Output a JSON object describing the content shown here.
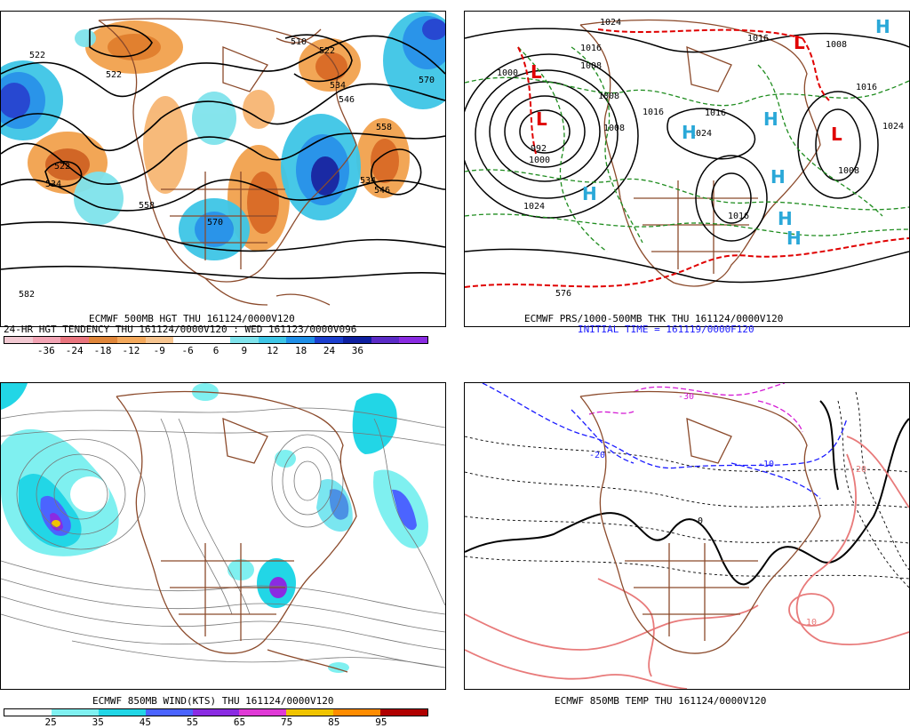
{
  "panels": {
    "p1": {
      "line1": "ECMWF 500MB HGT THU 161124/0000V120",
      "line2": "24-HR HGT TENDENCY THU 161124/0000V120 : WED 161123/0000V096",
      "contour_labels": [
        "522",
        "522",
        "510",
        "522",
        "534",
        "546",
        "570",
        "558",
        "534",
        "546",
        "522",
        "534",
        "558",
        "570",
        "582"
      ],
      "colorbar": {
        "colors": [
          "#f2c9d2",
          "#f2a4b4",
          "#e9757e",
          "#e0863a",
          "#f4a95c",
          "#f7c590",
          "#ffffff",
          "#ffffff",
          "#7fe3ec",
          "#3ec6e6",
          "#1f8fe8",
          "#1c3fcf",
          "#0e1fa0",
          "#5b2bc7",
          "#8a2be2"
        ],
        "ticks": [
          "-36",
          "-24",
          "-18",
          "-12",
          "-9",
          "-6",
          "6",
          "9",
          "12",
          "18",
          "24",
          "36"
        ]
      }
    },
    "p2": {
      "line1": "ECMWF PRS/1000-500MB THK THU 161124/0000V120",
      "line2": "INITIAL TIME = 161119/0000F120",
      "contour_labels": [
        "1024",
        "1000",
        "1016",
        "1008",
        "992",
        "1000",
        "1024",
        "1016",
        "1024",
        "1008",
        "1016",
        "1016",
        "1008",
        "1024",
        "1016",
        "1008",
        "1016",
        "1008",
        "576"
      ],
      "symbols": {
        "low": "L",
        "high": "H"
      }
    },
    "p3": {
      "line1": "ECMWF 850MB WIND(KTS) THU 161124/0000V120",
      "colorbar": {
        "colors": [
          "#ffffff",
          "#7ff0f0",
          "#22d6e6",
          "#4b64ff",
          "#8a2be2",
          "#e03ad6",
          "#f0c400",
          "#ff8c00",
          "#b00000"
        ],
        "ticks": [
          "25",
          "35",
          "45",
          "55",
          "65",
          "75",
          "85",
          "95"
        ]
      }
    },
    "p4": {
      "line1": "ECMWF 850MB TEMP THU 161124/0000V120",
      "contour_labels": [
        "-30",
        "-20",
        "-10",
        "0",
        "10",
        "20"
      ]
    }
  },
  "colors": {
    "land": "#8b4a2b",
    "height_contour": "#000000",
    "thickness_contour": "#1e8c1e",
    "thickness_warm": "#e00000",
    "low_symbol": "#e00000",
    "high_symbol": "#2aa8d8",
    "temp_cold": "#1a1aff",
    "temp_very_cold": "#d41ad4",
    "temp_warm": "#e87a7a"
  }
}
